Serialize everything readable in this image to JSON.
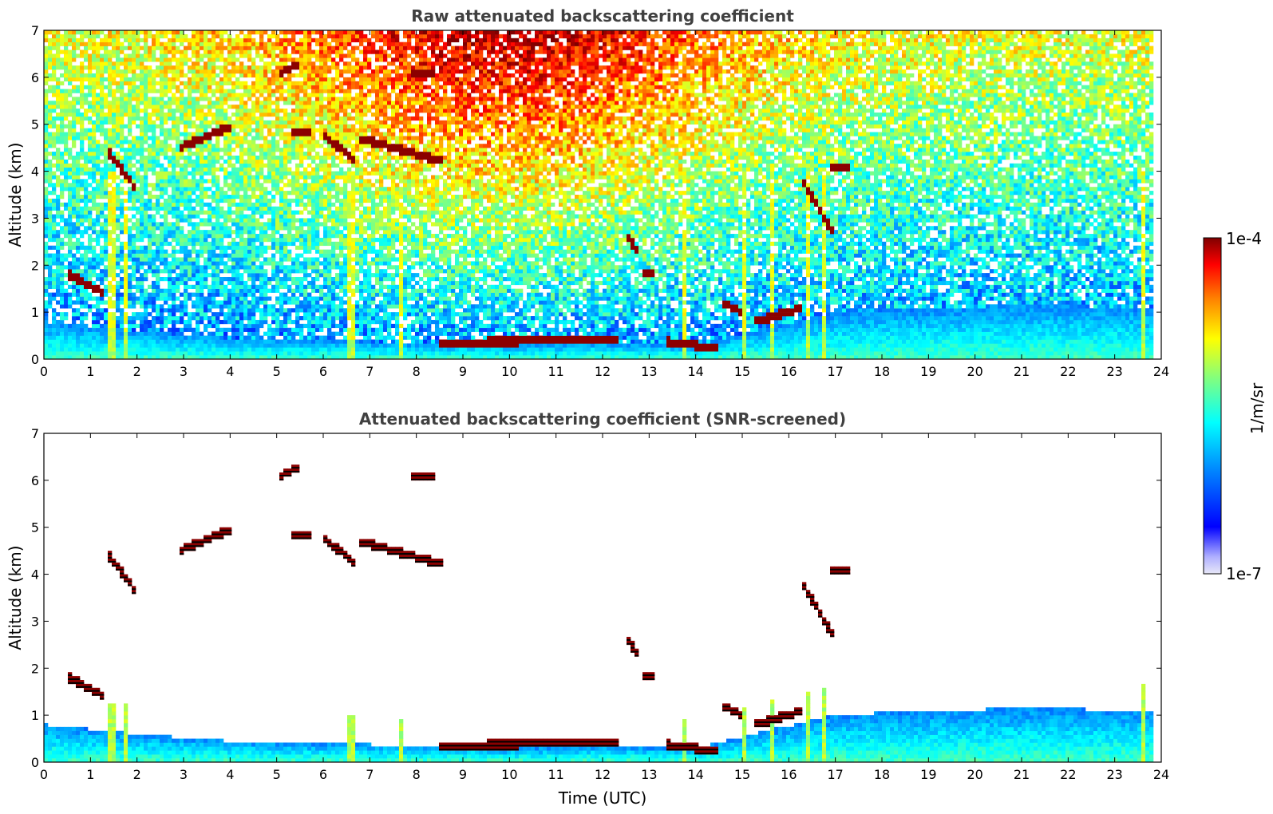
{
  "chart_data": [
    {
      "type": "heatmap",
      "title": "Raw attenuated backscattering coefficient",
      "xlabel": "",
      "ylabel": "Altitude (km)",
      "xlim": [
        0,
        24
      ],
      "ylim": [
        0,
        7
      ],
      "xticks": [
        "0",
        "1",
        "2",
        "3",
        "4",
        "5",
        "6",
        "7",
        "8",
        "9",
        "10",
        "11",
        "12",
        "13",
        "14",
        "15",
        "16",
        "17",
        "18",
        "19",
        "20",
        "21",
        "22",
        "23",
        "24"
      ],
      "yticks": [
        "0",
        "1",
        "2",
        "3",
        "4",
        "5",
        "6",
        "7"
      ],
      "data_end_hour": 23.8,
      "colorscale": "jet",
      "features": {
        "boundary_layer_top_km": [
          [
            0,
            0.8
          ],
          [
            1,
            0.7
          ],
          [
            2,
            0.6
          ],
          [
            4,
            0.45
          ],
          [
            6,
            0.4
          ],
          [
            8,
            0.35
          ],
          [
            10,
            0.3
          ],
          [
            12,
            0.35
          ],
          [
            14,
            0.3
          ],
          [
            15,
            0.55
          ],
          [
            17,
            1.0
          ],
          [
            18,
            1.05
          ],
          [
            21,
            1.15
          ],
          [
            23.8,
            1.1
          ]
        ],
        "cloud_layers": [
          {
            "t_start": 0.55,
            "t_end": 1.3,
            "alt_start_km": 1.8,
            "alt_end_km": 1.4
          },
          {
            "t_start": 1.4,
            "t_end": 2.0,
            "alt_start_km": 4.4,
            "alt_end_km": 3.6
          },
          {
            "t_start": 2.9,
            "t_end": 4.0,
            "alt_start_km": 4.5,
            "alt_end_km": 4.95
          },
          {
            "t_start": 5.1,
            "t_end": 5.5,
            "alt_start_km": 6.1,
            "alt_end_km": 6.3
          },
          {
            "t_start": 5.3,
            "t_end": 5.7,
            "alt_start_km": 4.85,
            "alt_end_km": 4.85
          },
          {
            "t_start": 6.0,
            "t_end": 6.7,
            "alt_start_km": 4.8,
            "alt_end_km": 4.2
          },
          {
            "t_start": 6.8,
            "t_end": 8.6,
            "alt_start_km": 4.7,
            "alt_end_km": 4.2
          },
          {
            "t_start": 7.9,
            "t_end": 8.4,
            "alt_start_km": 6.1,
            "alt_end_km": 6.05
          },
          {
            "t_start": 8.5,
            "t_end": 12.3,
            "alt_start_km": 0.35,
            "alt_end_km": 0.42
          },
          {
            "t_start": 12.5,
            "t_end": 12.8,
            "alt_start_km": 2.7,
            "alt_end_km": 2.2
          },
          {
            "t_start": 12.9,
            "t_end": 13.1,
            "alt_start_km": 1.8,
            "alt_end_km": 1.8
          },
          {
            "t_start": 13.4,
            "t_end": 14.5,
            "alt_start_km": 0.38,
            "alt_end_km": 0.22
          },
          {
            "t_start": 14.6,
            "t_end": 15.0,
            "alt_start_km": 1.2,
            "alt_end_km": 1.0
          },
          {
            "t_start": 15.3,
            "t_end": 16.3,
            "alt_start_km": 0.8,
            "alt_end_km": 1.1
          },
          {
            "t_start": 16.3,
            "t_end": 17.0,
            "alt_start_km": 3.8,
            "alt_end_km": 2.6
          },
          {
            "t_start": 16.9,
            "t_end": 17.3,
            "alt_start_km": 4.1,
            "alt_end_km": 4.1
          }
        ],
        "vertical_streaks_hour": [
          1.45,
          1.75,
          6.6,
          7.65,
          13.75,
          15.05,
          15.65,
          16.42,
          16.75,
          23.6
        ]
      }
    },
    {
      "type": "heatmap",
      "title": "Attenuated backscattering coefficient (SNR-screened)",
      "xlabel": "Time (UTC)",
      "ylabel": "Altitude (km)",
      "xlim": [
        0,
        24
      ],
      "ylim": [
        0,
        7
      ],
      "xticks": [
        "0",
        "1",
        "2",
        "3",
        "4",
        "5",
        "6",
        "7",
        "8",
        "9",
        "10",
        "11",
        "12",
        "13",
        "14",
        "15",
        "16",
        "17",
        "18",
        "19",
        "20",
        "21",
        "22",
        "23",
        "24"
      ],
      "yticks": [
        "0",
        "1",
        "2",
        "3",
        "4",
        "5",
        "6",
        "7"
      ],
      "data_end_hour": 23.8,
      "colorscale": "jet",
      "screened": true
    }
  ],
  "colorbar": {
    "label": "1/m/sr",
    "min_label": "1e-7",
    "max_label": "1e-4",
    "scale": "log",
    "range": [
      1e-07,
      0.0001
    ],
    "colors": [
      "#e8e8f8",
      "#b0b0ff",
      "#0000ff",
      "#0080ff",
      "#00ffff",
      "#80ff80",
      "#ffff00",
      "#ff8000",
      "#ff0000",
      "#800000"
    ]
  }
}
